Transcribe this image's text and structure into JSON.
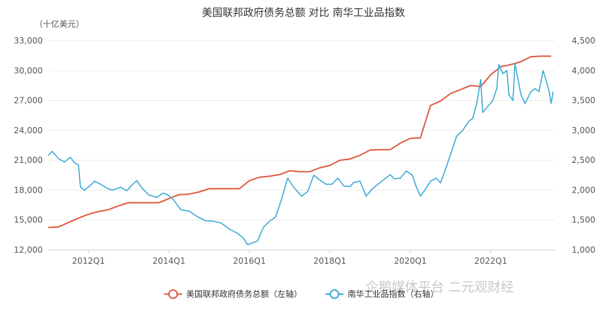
{
  "chart_data": {
    "type": "line",
    "title": "美国联邦政府债务总额 对比 南华工业品指数",
    "left_unit": "（十亿美元）",
    "left_axis": {
      "range": [
        12000,
        33000
      ],
      "ticks": [
        "12,000",
        "15,000",
        "18,000",
        "21,000",
        "24,000",
        "27,000",
        "30,000",
        "33,000"
      ]
    },
    "right_axis": {
      "range": [
        1000,
        4500
      ],
      "ticks": [
        "1,000",
        "1,500",
        "2,000",
        "2,500",
        "3,000",
        "3,500",
        "4,000",
        "4,500"
      ]
    },
    "x_ticks": [
      {
        "label": "2012Q1",
        "t": 2012.0
      },
      {
        "label": "2014Q1",
        "t": 2014.0
      },
      {
        "label": "2016Q1",
        "t": 2016.0
      },
      {
        "label": "2018Q1",
        "t": 2018.0
      },
      {
        "label": "2020Q1",
        "t": 2020.0
      },
      {
        "label": "2022Q1",
        "t": 2022.0
      }
    ],
    "x_range": [
      2011.0,
      2023.6
    ],
    "grid": true,
    "legend_position": "bottom",
    "series": [
      {
        "name": "美国联邦政府债务总额（左轴）",
        "axis": "left",
        "color": "#e05a3f",
        "marker": "circle",
        "points": [
          [
            2011.0,
            14250
          ],
          [
            2011.25,
            14300
          ],
          [
            2011.5,
            14750
          ],
          [
            2011.75,
            15200
          ],
          [
            2012.0,
            15580
          ],
          [
            2012.25,
            15850
          ],
          [
            2012.5,
            16050
          ],
          [
            2012.75,
            16430
          ],
          [
            2013.0,
            16750
          ],
          [
            2013.25,
            16740
          ],
          [
            2013.5,
            16740
          ],
          [
            2013.75,
            16740
          ],
          [
            2014.0,
            17150
          ],
          [
            2014.25,
            17550
          ],
          [
            2014.5,
            17600
          ],
          [
            2014.75,
            17820
          ],
          [
            2015.0,
            18150
          ],
          [
            2015.25,
            18150
          ],
          [
            2015.5,
            18150
          ],
          [
            2015.75,
            18150
          ],
          [
            2016.0,
            18960
          ],
          [
            2016.25,
            19300
          ],
          [
            2016.5,
            19400
          ],
          [
            2016.75,
            19560
          ],
          [
            2017.0,
            19950
          ],
          [
            2017.25,
            19850
          ],
          [
            2017.5,
            19860
          ],
          [
            2017.75,
            20250
          ],
          [
            2018.0,
            20480
          ],
          [
            2018.25,
            21000
          ],
          [
            2018.5,
            21130
          ],
          [
            2018.75,
            21500
          ],
          [
            2019.0,
            22030
          ],
          [
            2019.25,
            22060
          ],
          [
            2019.5,
            22060
          ],
          [
            2019.75,
            22720
          ],
          [
            2020.0,
            23200
          ],
          [
            2020.25,
            23240
          ],
          [
            2020.5,
            26500
          ],
          [
            2020.75,
            26950
          ],
          [
            2021.0,
            27700
          ],
          [
            2021.25,
            28100
          ],
          [
            2021.5,
            28500
          ],
          [
            2021.75,
            28400
          ],
          [
            2022.0,
            29600
          ],
          [
            2022.25,
            30400
          ],
          [
            2022.5,
            30600
          ],
          [
            2022.75,
            30900
          ],
          [
            2023.0,
            31400
          ],
          [
            2023.25,
            31450
          ],
          [
            2023.5,
            31450
          ]
        ]
      },
      {
        "name": "南华工业品指数（右轴）",
        "axis": "right",
        "color": "#3ca9d6",
        "marker": "circle",
        "points": [
          [
            2011.0,
            2580
          ],
          [
            2011.1,
            2650
          ],
          [
            2011.25,
            2530
          ],
          [
            2011.4,
            2470
          ],
          [
            2011.55,
            2550
          ],
          [
            2011.65,
            2460
          ],
          [
            2011.75,
            2420
          ],
          [
            2011.8,
            2050
          ],
          [
            2011.9,
            2000
          ],
          [
            2012.05,
            2080
          ],
          [
            2012.15,
            2150
          ],
          [
            2012.3,
            2100
          ],
          [
            2012.5,
            2020
          ],
          [
            2012.6,
            2000
          ],
          [
            2012.8,
            2050
          ],
          [
            2012.95,
            1990
          ],
          [
            2013.1,
            2100
          ],
          [
            2013.2,
            2160
          ],
          [
            2013.35,
            2020
          ],
          [
            2013.5,
            1920
          ],
          [
            2013.7,
            1880
          ],
          [
            2013.85,
            1950
          ],
          [
            2013.95,
            1930
          ],
          [
            2014.1,
            1850
          ],
          [
            2014.3,
            1670
          ],
          [
            2014.5,
            1650
          ],
          [
            2014.7,
            1560
          ],
          [
            2014.9,
            1490
          ],
          [
            2015.1,
            1480
          ],
          [
            2015.3,
            1450
          ],
          [
            2015.5,
            1350
          ],
          [
            2015.7,
            1280
          ],
          [
            2015.85,
            1200
          ],
          [
            2015.95,
            1090
          ],
          [
            2016.05,
            1110
          ],
          [
            2016.2,
            1150
          ],
          [
            2016.35,
            1380
          ],
          [
            2016.5,
            1480
          ],
          [
            2016.65,
            1550
          ],
          [
            2016.8,
            1850
          ],
          [
            2016.95,
            2200
          ],
          [
            2017.1,
            2050
          ],
          [
            2017.3,
            1900
          ],
          [
            2017.45,
            1980
          ],
          [
            2017.6,
            2250
          ],
          [
            2017.75,
            2170
          ],
          [
            2017.9,
            2100
          ],
          [
            2018.05,
            2100
          ],
          [
            2018.2,
            2200
          ],
          [
            2018.35,
            2070
          ],
          [
            2018.5,
            2060
          ],
          [
            2018.6,
            2130
          ],
          [
            2018.75,
            2150
          ],
          [
            2018.9,
            1900
          ],
          [
            2019.05,
            2020
          ],
          [
            2019.2,
            2100
          ],
          [
            2019.35,
            2180
          ],
          [
            2019.5,
            2260
          ],
          [
            2019.6,
            2190
          ],
          [
            2019.75,
            2200
          ],
          [
            2019.9,
            2320
          ],
          [
            2020.05,
            2250
          ],
          [
            2020.15,
            2050
          ],
          [
            2020.25,
            1900
          ],
          [
            2020.35,
            1990
          ],
          [
            2020.5,
            2150
          ],
          [
            2020.65,
            2200
          ],
          [
            2020.75,
            2120
          ],
          [
            2020.9,
            2400
          ],
          [
            2021.05,
            2700
          ],
          [
            2021.15,
            2900
          ],
          [
            2021.3,
            3000
          ],
          [
            2021.45,
            3150
          ],
          [
            2021.55,
            3200
          ],
          [
            2021.65,
            3450
          ],
          [
            2021.75,
            3850
          ],
          [
            2021.8,
            3300
          ],
          [
            2021.9,
            3380
          ],
          [
            2022.05,
            3500
          ],
          [
            2022.15,
            3700
          ],
          [
            2022.2,
            4100
          ],
          [
            2022.3,
            3950
          ],
          [
            2022.4,
            4000
          ],
          [
            2022.45,
            3600
          ],
          [
            2022.55,
            3500
          ],
          [
            2022.6,
            4120
          ],
          [
            2022.75,
            3600
          ],
          [
            2022.85,
            3450
          ],
          [
            2023.0,
            3650
          ],
          [
            2023.1,
            3700
          ],
          [
            2023.2,
            3650
          ],
          [
            2023.3,
            4000
          ],
          [
            2023.35,
            3900
          ],
          [
            2023.45,
            3650
          ],
          [
            2023.5,
            3450
          ],
          [
            2023.55,
            3650
          ]
        ]
      }
    ]
  },
  "watermark": "企鹅媒体平台 二元观财经"
}
